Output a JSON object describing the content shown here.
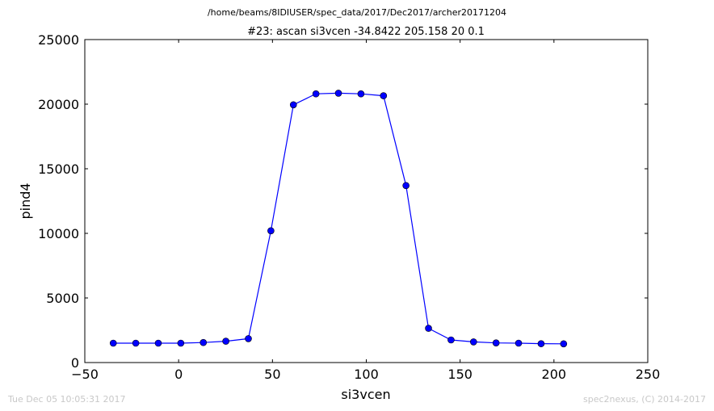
{
  "chart_data": {
    "type": "line",
    "suptitle": "/home/beams/8IDIUSER/spec_data/2017/Dec2017/archer20171204",
    "title": "#23: ascan  si3vcen -34.8422 205.158  20 0.1",
    "xlabel": "si3vcen",
    "ylabel": "pind4",
    "xlim": [
      -50,
      250
    ],
    "ylim": [
      0,
      25000
    ],
    "xticks": [
      -50,
      0,
      50,
      100,
      150,
      200,
      250
    ],
    "yticks": [
      0,
      5000,
      10000,
      15000,
      20000,
      25000
    ],
    "xtick_labels": [
      "−50",
      "0",
      "50",
      "100",
      "150",
      "200",
      "250"
    ],
    "ytick_labels": [
      "0",
      "5000",
      "10000",
      "15000",
      "20000",
      "25000"
    ],
    "grid": false,
    "color": "#0000ff",
    "x": [
      -34.84,
      -22.84,
      -10.84,
      1.16,
      13.16,
      25.16,
      37.16,
      49.16,
      61.16,
      73.16,
      85.16,
      97.16,
      109.16,
      121.16,
      133.16,
      145.16,
      157.16,
      169.16,
      181.16,
      193.16,
      205.16
    ],
    "y": [
      1500,
      1500,
      1500,
      1500,
      1550,
      1650,
      1850,
      10200,
      19950,
      20800,
      20850,
      20800,
      20650,
      13700,
      2650,
      1750,
      1600,
      1520,
      1500,
      1460,
      1450
    ]
  },
  "footer": {
    "timestamp": "Tue Dec 05 10:05:31 2017",
    "credit": "spec2nexus, (C) 2014-2017"
  }
}
